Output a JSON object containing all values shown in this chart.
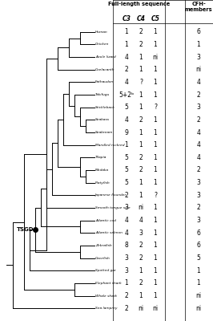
{
  "species": [
    "Human",
    "Chicken",
    "Anole lizard",
    "Coelacanth",
    "Fathaudon",
    "Takifugu",
    "Stickleback",
    "Seabass",
    "Seabream",
    "Mandled rockred",
    "Tilapia",
    "Medaka",
    "Platyfish",
    "Japanese flounder",
    "Smooth tongue sole",
    "Atlantic cod",
    "Atlantic salmon",
    "Zebrafish",
    "Cavefish",
    "Spotted gar",
    "Elephant shark",
    "Whale shark",
    "Sea lamprey"
  ],
  "C3": [
    "1",
    "1",
    "4",
    "2",
    "4",
    "5+2ᵇ",
    "5",
    "4",
    "9",
    "1",
    "5",
    "5",
    "5",
    "2",
    "3",
    "4",
    "4",
    "8",
    "3",
    "3",
    "1",
    "2",
    "2"
  ],
  "C4": [
    "2",
    "2",
    "1",
    "1",
    "?",
    "1",
    "1",
    "2",
    "1",
    "1",
    "2",
    "2",
    "1",
    "1",
    "ni",
    "4",
    "3",
    "2",
    "2",
    "1",
    "2",
    "1",
    "ni"
  ],
  "C5": [
    "1",
    "1",
    "ni",
    "1",
    "1",
    "1",
    "?",
    "1",
    "1",
    "1",
    "1",
    "1",
    "1",
    "?",
    "1",
    "1",
    "1",
    "1",
    "1",
    "1",
    "1",
    "1",
    "ni"
  ],
  "CFH": [
    "6",
    "1",
    "3",
    "ni",
    "4",
    "2",
    "3",
    "2",
    "4",
    "4",
    "4",
    "2",
    "3",
    "3",
    "2",
    "3",
    "6",
    "6",
    "5",
    "1",
    "1",
    "ni",
    "ni"
  ],
  "header_full": "Full-length sequence",
  "col_C3": "C3",
  "col_C4": "C4",
  "col_C5": "C5",
  "TSGD_label": "TSGD",
  "bg_color": "#ffffff"
}
